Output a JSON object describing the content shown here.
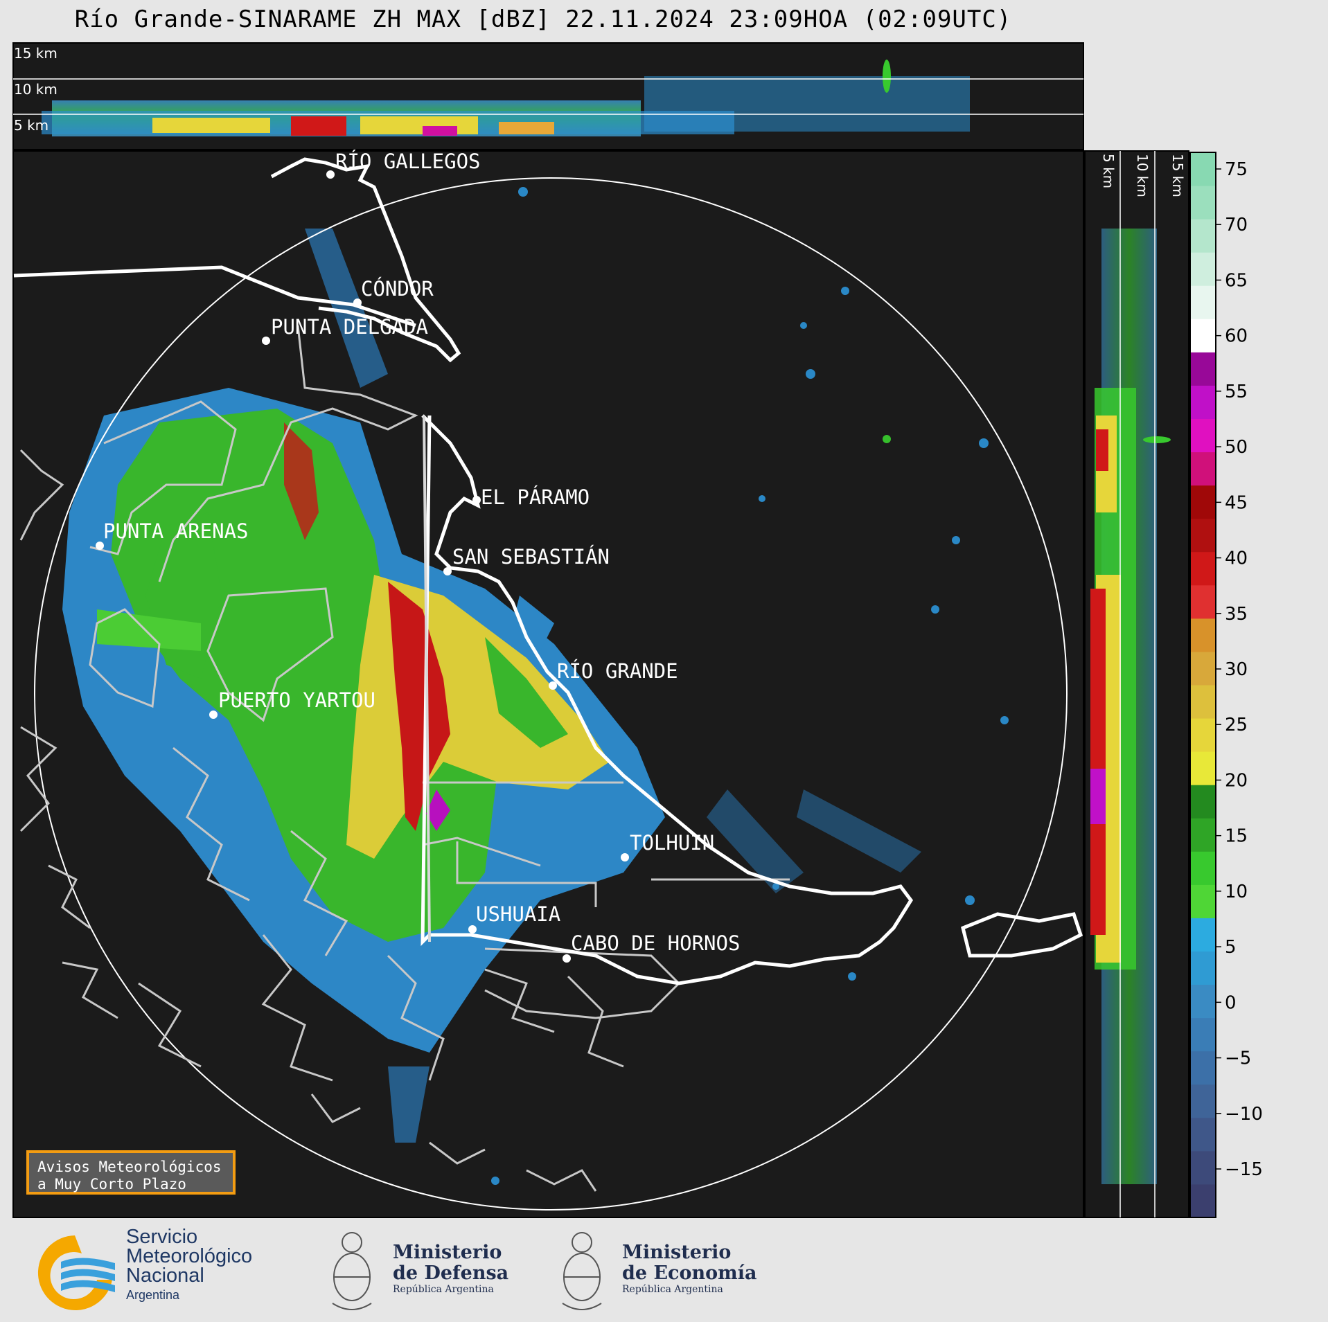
{
  "header": {
    "title": "Río Grande-SINARAME ZH MAX [dBZ] 22.11.2024 23:09HOA (02:09UTC)"
  },
  "top_panel": {
    "height_labels": [
      "15 km",
      "10 km",
      "5 km"
    ]
  },
  "right_panel": {
    "height_labels": [
      "5 km",
      "10 km",
      "15 km"
    ]
  },
  "cities": [
    {
      "name": "RÍO GALLEGOS"
    },
    {
      "name": "CÓNDOR"
    },
    {
      "name": "PUNTA DELGADA"
    },
    {
      "name": "PUNTA ARENAS"
    },
    {
      "name": "EL PÁRAMO"
    },
    {
      "name": "SAN SEBASTIÁN"
    },
    {
      "name": "RÍO GRANDE"
    },
    {
      "name": "PUERTO YARTOU"
    },
    {
      "name": "TOLHUIN"
    },
    {
      "name": "USHUAIA"
    },
    {
      "name": "CABO DE HORNOS"
    }
  ],
  "colorbar": {
    "unit": "dBZ",
    "ticks": [
      "75",
      "70",
      "65",
      "60",
      "55",
      "50",
      "45",
      "40",
      "35",
      "30",
      "25",
      "20",
      "15",
      "10",
      "5",
      "0",
      "−5",
      "−10",
      "−15"
    ],
    "colors": [
      "#3b3f6e",
      "#3d4a7a",
      "#3f5789",
      "#3f6498",
      "#3c70a8",
      "#3a7db6",
      "#3a8bc3",
      "#2f9bd3",
      "#2cabe0",
      "#4fd636",
      "#38c92e",
      "#2fa526",
      "#238a1f",
      "#e8e838",
      "#e6d63a",
      "#ddc03c",
      "#d8a83a",
      "#d8922a",
      "#e03030",
      "#d01818",
      "#b01010",
      "#a00808",
      "#d0107a",
      "#e010c0",
      "#c010c8",
      "#980898",
      "#ffffff",
      "#e8f6ef",
      "#cfeede",
      "#b4e6cc",
      "#9bdfbd",
      "#88d9b2"
    ]
  },
  "warning_box": {
    "line1": "Avisos Meteorológicos",
    "line2": "a Muy Corto Plazo"
  },
  "logos": {
    "smn": {
      "line1": "Servicio",
      "line2": "Meteorológico",
      "line3": "Nacional",
      "line4": "Argentina"
    },
    "defensa": {
      "line1": "Ministerio",
      "line2": "de Defensa",
      "line3": "República Argentina"
    },
    "economia": {
      "line1": "Ministerio",
      "line2": "de Economía",
      "line3": "República Argentina"
    }
  }
}
